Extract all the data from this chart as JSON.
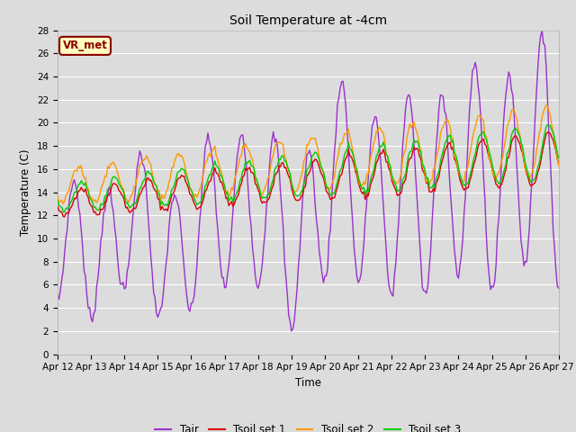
{
  "title": "Soil Temperature at -4cm",
  "xlabel": "Time",
  "ylabel": "Temperature (C)",
  "ylim": [
    0,
    28
  ],
  "background_color": "#dcdcdc",
  "grid_color": "#ffffff",
  "colors": {
    "Tair": "#9933cc",
    "Tsoil1": "#dd0000",
    "Tsoil2": "#ff9900",
    "Tsoil3": "#00cc00"
  },
  "legend_labels": [
    "Tair",
    "Tsoil set 1",
    "Tsoil set 2",
    "Tsoil set 3"
  ],
  "xtick_labels": [
    "Apr 12",
    "Apr 13",
    "Apr 14",
    "Apr 15",
    "Apr 16",
    "Apr 17",
    "Apr 18",
    "Apr 19",
    "Apr 20",
    "Apr 21",
    "Apr 22",
    "Apr 23",
    "Apr 24",
    "Apr 25",
    "Apr 26",
    "Apr 27"
  ],
  "ytick_values": [
    0,
    2,
    4,
    6,
    8,
    10,
    12,
    14,
    16,
    18,
    20,
    22,
    24,
    26,
    28
  ],
  "annotation_text": "VR_met",
  "annotation_color": "#8B0000",
  "annotation_bg": "#ffffc0"
}
